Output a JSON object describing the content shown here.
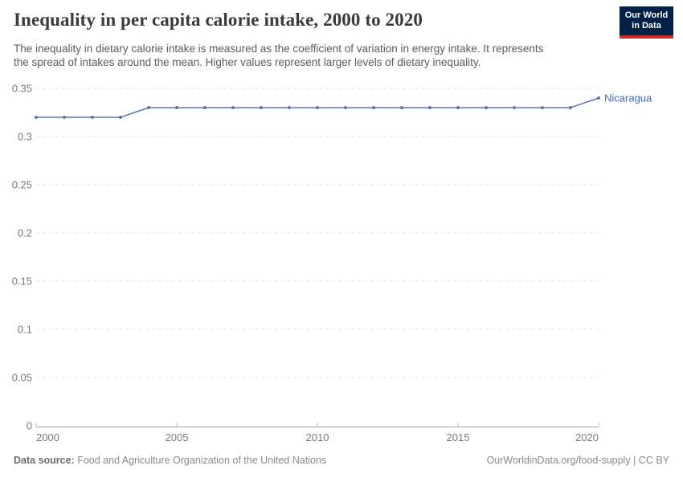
{
  "header": {
    "title": "Inequality in per capita calorie intake, 2000 to 2020",
    "subtitle_lines": [
      "The inequality in dietary calorie intake is measured as the coefficient of variation in energy intake. It represents",
      "the spread of intakes around the mean. Higher values represent larger levels of dietary inequality."
    ],
    "logo": {
      "line1": "Our World",
      "line2": "in Data",
      "bg_color": "#002147",
      "accent_color": "#cf2e26"
    }
  },
  "chart_data": {
    "type": "line",
    "title": "Inequality in per capita calorie intake, 2000 to 2020",
    "xlabel": "",
    "ylabel": "",
    "x": [
      2000,
      2001,
      2002,
      2003,
      2004,
      2005,
      2006,
      2007,
      2008,
      2009,
      2010,
      2011,
      2012,
      2013,
      2014,
      2015,
      2016,
      2017,
      2018,
      2019,
      2020
    ],
    "series": [
      {
        "name": "Nicaragua",
        "color": "#5878ae",
        "label_color": "#3d6bb3",
        "values": [
          0.32,
          0.32,
          0.32,
          0.32,
          0.33,
          0.33,
          0.33,
          0.33,
          0.33,
          0.33,
          0.33,
          0.33,
          0.33,
          0.33,
          0.33,
          0.33,
          0.33,
          0.33,
          0.33,
          0.33,
          0.34
        ]
      }
    ],
    "xlim": [
      2000,
      2020
    ],
    "ylim": [
      0,
      0.35
    ],
    "xticks": [
      2000,
      2005,
      2010,
      2015,
      2020
    ],
    "yticks": [
      0,
      0.05,
      0.1,
      0.15,
      0.2,
      0.25,
      0.3,
      0.35
    ],
    "grid": "horizontal-dashed",
    "grid_color": "#dedede",
    "axis_color": "#a5a5a5",
    "legend_position": "end-of-line"
  },
  "footer": {
    "data_source_label": "Data source:",
    "data_source_value": " Food and Agriculture Organization of the United Nations",
    "credit_link": "OurWorldinData.org/food-supply",
    "credit_suffix": " | CC BY"
  }
}
